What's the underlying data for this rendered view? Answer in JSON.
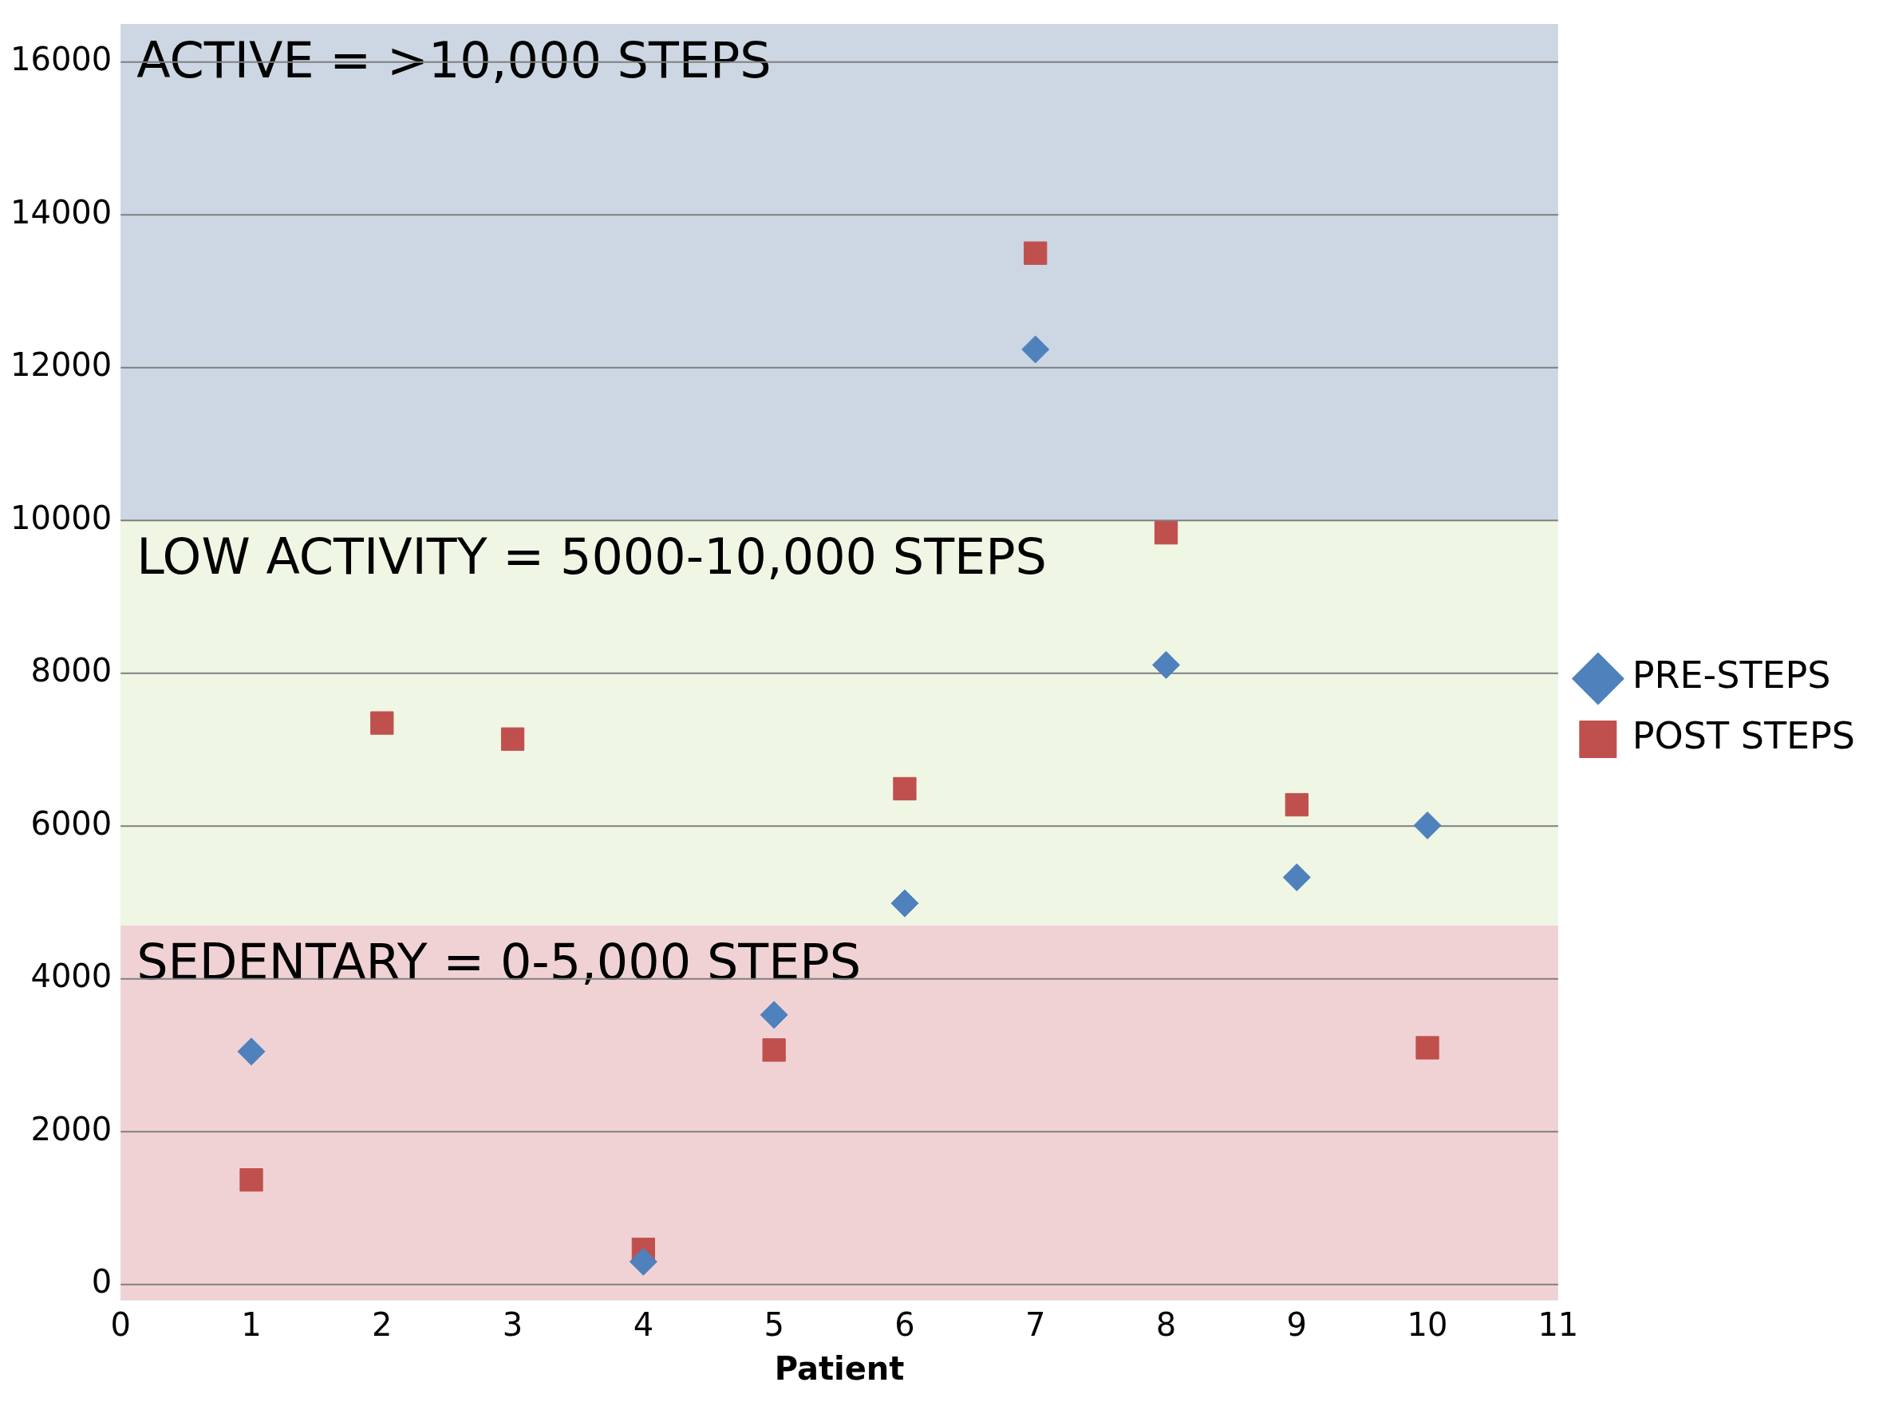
{
  "chart_data": {
    "type": "scatter",
    "xlabel": "Patient",
    "x": [
      1,
      2,
      3,
      4,
      5,
      6,
      7,
      8,
      9,
      10
    ],
    "series": [
      {
        "name": "PRE-STEPS",
        "color": "#4f81bd",
        "marker": "diamond",
        "values": [
          3050,
          null,
          null,
          300,
          3530,
          4990,
          12240,
          8110,
          5330,
          6010
        ]
      },
      {
        "name": "POST STEPS",
        "color": "#c0504d",
        "marker": "square",
        "values": [
          1370,
          7350,
          7140,
          460,
          3070,
          6490,
          13500,
          9840,
          6280,
          3100
        ]
      }
    ],
    "xlim": [
      0,
      11
    ],
    "xticks": [
      0,
      1,
      2,
      3,
      4,
      5,
      6,
      7,
      8,
      9,
      10,
      11
    ],
    "ylim": [
      -200,
      16500
    ],
    "yticks": [
      0,
      2000,
      4000,
      6000,
      8000,
      10000,
      12000,
      14000,
      16000
    ],
    "bands": [
      {
        "axis": "y",
        "from": 10000,
        "to": 16500,
        "label": "ACTIVE = >10,000 STEPS",
        "color": "#ccd7e3"
      },
      {
        "axis": "y",
        "from": 4700,
        "to": 10000,
        "label": "LOW ACTIVITY = 5000-10,000 STEPS",
        "color": "#f0f6e4"
      },
      {
        "axis": "y",
        "from": -200,
        "to": 4700,
        "label": "SEDENTARY = 0-5,000 STEPS",
        "color": "#f0d2d5"
      }
    ],
    "grid": "y",
    "legend": "right"
  }
}
